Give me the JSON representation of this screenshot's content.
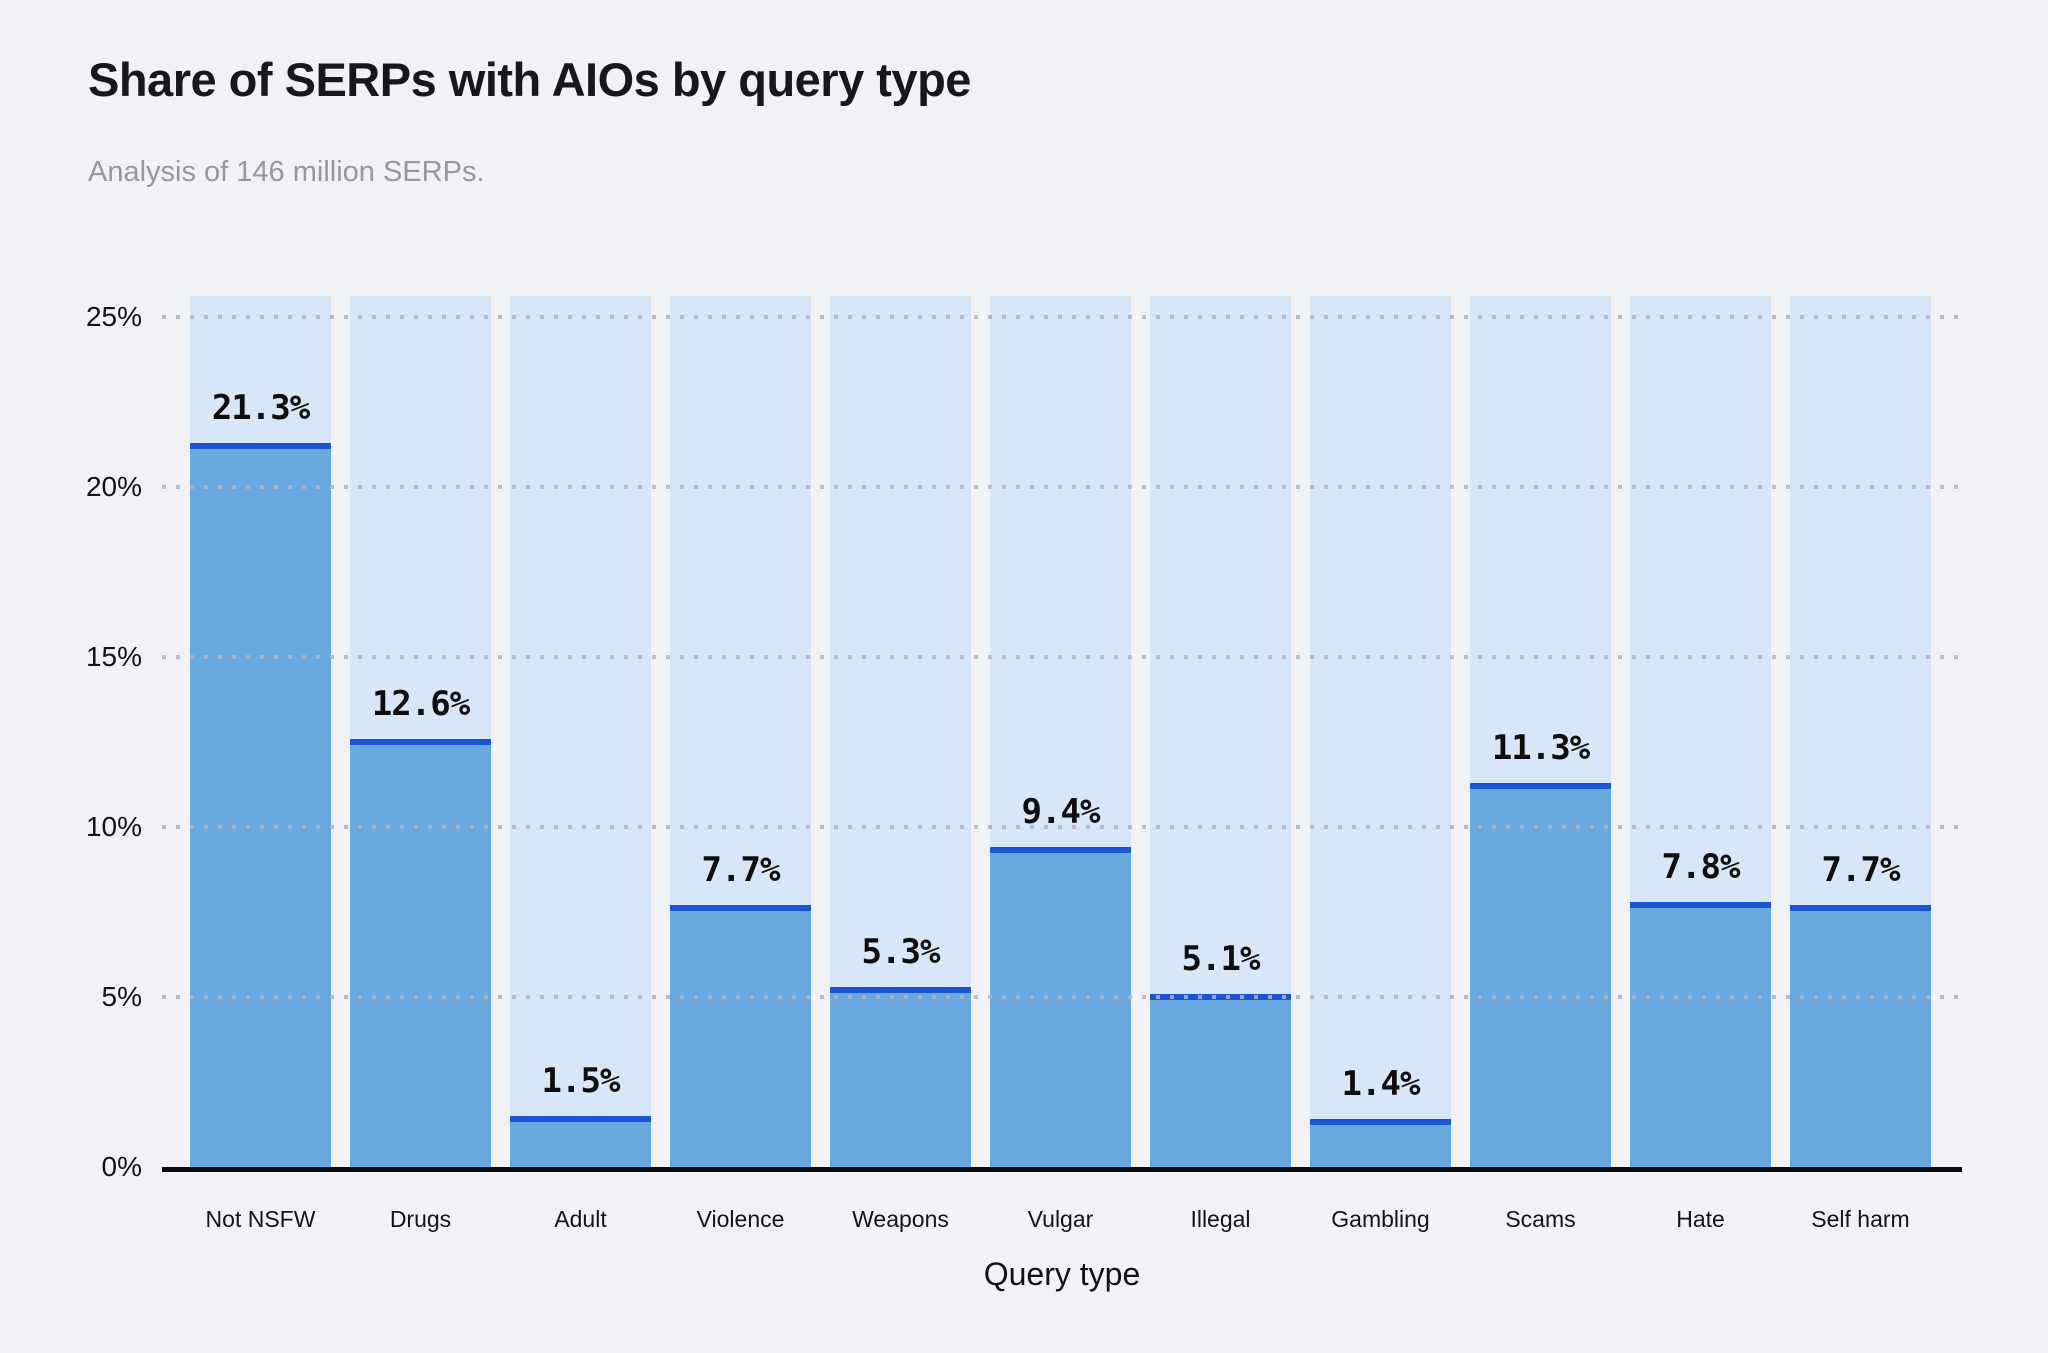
{
  "header": {
    "title": "Share of SERPs with AIOs by query type",
    "subtitle": "Analysis of 146 million SERPs."
  },
  "chart_data": {
    "type": "bar",
    "title": "Share of SERPs with AIOs by query type",
    "subtitle": "Analysis of 146 million SERPs.",
    "categories": [
      "Not NSFW",
      "Drugs",
      "Adult",
      "Violence",
      "Weapons",
      "Vulgar",
      "Illegal",
      "Gambling",
      "Scams",
      "Hate",
      "Self harm"
    ],
    "values": [
      21.3,
      12.6,
      1.5,
      7.7,
      5.3,
      9.4,
      5.1,
      1.4,
      11.3,
      7.8,
      7.7
    ],
    "data_labels": [
      "21.3%",
      "12.6%",
      "1.5%",
      "7.7%",
      "5.3%",
      "9.4%",
      "5.1%",
      "1.4%",
      "11.3%",
      "7.8%",
      "7.7%"
    ],
    "xlabel": "Query type",
    "ylabel": "",
    "y_ticks": [
      "0%",
      "5%",
      "10%",
      "15%",
      "20%",
      "25%"
    ],
    "y_tick_values": [
      0,
      5,
      10,
      15,
      20,
      25
    ],
    "ylim": [
      0,
      25.6
    ],
    "grid": "dotted-horizontal",
    "legend": "none",
    "colors": {
      "bar_fill": "#69a9e0",
      "bar_cap": "#1b55d6",
      "column_background": "#d8e7f8",
      "grid_dot": "#b0b4be",
      "axis_line": "#0b0c0f",
      "title_text": "#17181c",
      "subtitle_text": "#96989e",
      "tick_text": "#131419",
      "page_background": "#f1f2f5"
    }
  }
}
